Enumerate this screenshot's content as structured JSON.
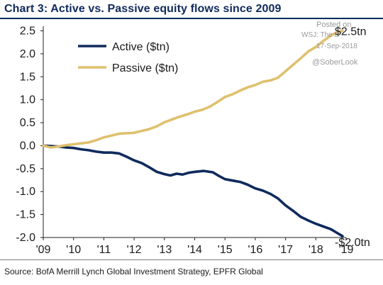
{
  "header": {
    "title": "Chart 3: Active vs. Passive equity flows since 2009"
  },
  "footer": {
    "source": "Source:  BofA Merrill Lynch Global Investment Strategy, EPFR Global"
  },
  "watermark": {
    "line1": "Posted on",
    "line2": "WSJ: The D",
    "line3": "17-Sep-2018",
    "line4": "@SoberLook"
  },
  "colors": {
    "active": "#0f2a5c",
    "passive": "#dfc06e",
    "title": "#0f2a5c"
  },
  "chart_data": {
    "type": "line",
    "title": "Chart 3: Active vs. Passive equity flows since 2009",
    "xlabel": "",
    "ylabel": "",
    "xlim": [
      2009,
      2019
    ],
    "ylim": [
      -2.0,
      2.6
    ],
    "y_ticks": [
      2.5,
      2.0,
      1.5,
      1.0,
      0.5,
      0.0,
      -0.5,
      -1.0,
      -1.5,
      -2.0
    ],
    "y_tick_labels": [
      "2.5",
      "2.0",
      "1.5",
      "1.0",
      "0.5",
      "0.0",
      "-0.5",
      "-1.0",
      "-1.5",
      "-2.0"
    ],
    "x_ticks": [
      2009,
      2010,
      2011,
      2012,
      2013,
      2014,
      2015,
      2016,
      2017,
      2018,
      2019
    ],
    "x_tick_labels": [
      "'09",
      "'10",
      "'11",
      "'12",
      "'13",
      "'14",
      "'15",
      "'16",
      "'17",
      "'18",
      "'19"
    ],
    "grid": false,
    "legend_position": "top-left",
    "end_labels": {
      "passive": "$2.5tn",
      "active": "-$2.0tn"
    },
    "series": [
      {
        "name": "Active ($tn)",
        "color": "#0f2a5c",
        "points": [
          [
            2009.0,
            0.0
          ],
          [
            2009.25,
            -0.01
          ],
          [
            2009.5,
            -0.02
          ],
          [
            2009.75,
            -0.04
          ],
          [
            2010.0,
            -0.05
          ],
          [
            2010.25,
            -0.08
          ],
          [
            2010.5,
            -0.1
          ],
          [
            2010.75,
            -0.13
          ],
          [
            2011.0,
            -0.15
          ],
          [
            2011.25,
            -0.15
          ],
          [
            2011.5,
            -0.17
          ],
          [
            2011.75,
            -0.24
          ],
          [
            2012.0,
            -0.32
          ],
          [
            2012.25,
            -0.38
          ],
          [
            2012.5,
            -0.47
          ],
          [
            2012.75,
            -0.57
          ],
          [
            2013.0,
            -0.62
          ],
          [
            2013.2,
            -0.65
          ],
          [
            2013.4,
            -0.61
          ],
          [
            2013.6,
            -0.63
          ],
          [
            2013.8,
            -0.59
          ],
          [
            2014.0,
            -0.57
          ],
          [
            2014.3,
            -0.55
          ],
          [
            2014.6,
            -0.58
          ],
          [
            2014.8,
            -0.66
          ],
          [
            2015.0,
            -0.73
          ],
          [
            2015.25,
            -0.76
          ],
          [
            2015.5,
            -0.79
          ],
          [
            2015.75,
            -0.85
          ],
          [
            2016.0,
            -0.93
          ],
          [
            2016.25,
            -0.98
          ],
          [
            2016.5,
            -1.05
          ],
          [
            2016.75,
            -1.15
          ],
          [
            2017.0,
            -1.3
          ],
          [
            2017.25,
            -1.42
          ],
          [
            2017.5,
            -1.55
          ],
          [
            2017.75,
            -1.63
          ],
          [
            2018.0,
            -1.7
          ],
          [
            2018.25,
            -1.76
          ],
          [
            2018.5,
            -1.82
          ],
          [
            2018.7,
            -1.9
          ],
          [
            2018.88,
            -1.97
          ]
        ]
      },
      {
        "name": "Passive ($tn)",
        "color": "#dfc06e",
        "points": [
          [
            2009.0,
            0.0
          ],
          [
            2009.25,
            -0.04
          ],
          [
            2009.5,
            -0.02
          ],
          [
            2009.75,
            0.01
          ],
          [
            2010.0,
            0.03
          ],
          [
            2010.25,
            0.05
          ],
          [
            2010.5,
            0.07
          ],
          [
            2010.75,
            0.12
          ],
          [
            2011.0,
            0.18
          ],
          [
            2011.25,
            0.22
          ],
          [
            2011.5,
            0.26
          ],
          [
            2011.75,
            0.27
          ],
          [
            2012.0,
            0.28
          ],
          [
            2012.25,
            0.32
          ],
          [
            2012.5,
            0.36
          ],
          [
            2012.75,
            0.42
          ],
          [
            2013.0,
            0.51
          ],
          [
            2013.25,
            0.57
          ],
          [
            2013.5,
            0.63
          ],
          [
            2013.75,
            0.68
          ],
          [
            2014.0,
            0.74
          ],
          [
            2014.25,
            0.78
          ],
          [
            2014.5,
            0.85
          ],
          [
            2014.75,
            0.95
          ],
          [
            2015.0,
            1.06
          ],
          [
            2015.25,
            1.12
          ],
          [
            2015.5,
            1.2
          ],
          [
            2015.75,
            1.27
          ],
          [
            2016.0,
            1.32
          ],
          [
            2016.25,
            1.39
          ],
          [
            2016.5,
            1.42
          ],
          [
            2016.75,
            1.48
          ],
          [
            2017.0,
            1.62
          ],
          [
            2017.25,
            1.76
          ],
          [
            2017.5,
            1.9
          ],
          [
            2017.75,
            2.05
          ],
          [
            2018.0,
            2.15
          ],
          [
            2018.25,
            2.28
          ],
          [
            2018.5,
            2.4
          ],
          [
            2018.7,
            2.47
          ],
          [
            2018.88,
            2.5
          ]
        ]
      }
    ]
  }
}
